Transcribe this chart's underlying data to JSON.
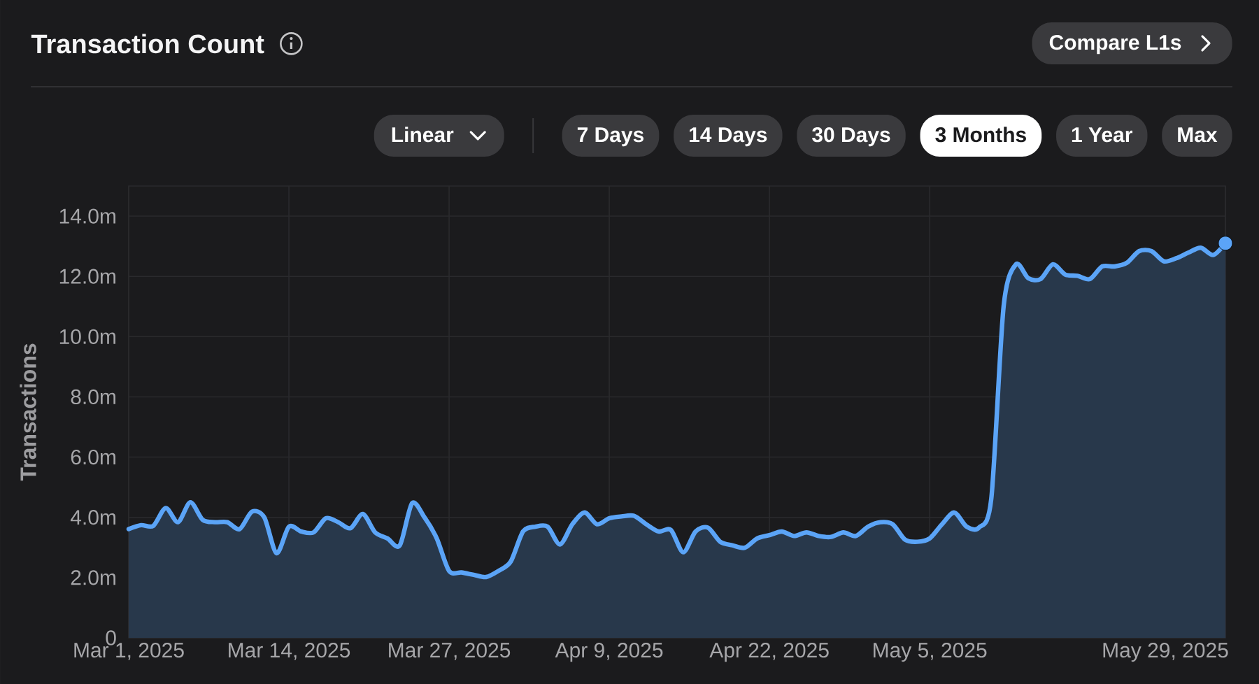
{
  "chart_data": {
    "type": "area",
    "title": "Transaction Count",
    "ylabel": "Transactions",
    "annotations": [
      "Compare L1s",
      "Linear",
      "7 Days",
      "14 Days",
      "30 Days",
      "3 Months",
      "1 Year",
      "Max"
    ],
    "xlim": [
      "2025-03-01",
      "2025-05-29"
    ],
    "xticks": [
      {
        "value": "2025-03-01",
        "label": "Mar 1, 2025"
      },
      {
        "value": "2025-03-14",
        "label": "Mar 14, 2025"
      },
      {
        "value": "2025-03-27",
        "label": "Mar 27, 2025"
      },
      {
        "value": "2025-04-09",
        "label": "Apr 9, 2025"
      },
      {
        "value": "2025-04-22",
        "label": "Apr 22, 2025"
      },
      {
        "value": "2025-05-05",
        "label": "May 5, 2025"
      },
      {
        "value": "2025-05-29",
        "label": "May 29, 2025"
      }
    ],
    "ylim": [
      0,
      15
    ],
    "yticks": [
      0,
      {
        "value": 2,
        "label": "2.0m"
      },
      {
        "value": 4,
        "label": "4.0m"
      },
      {
        "value": 6,
        "label": "6.0m"
      },
      {
        "value": 8,
        "label": "8.0m"
      },
      {
        "value": 10,
        "label": "10.0m"
      },
      {
        "value": 12,
        "label": "12.0m"
      },
      {
        "value": 14,
        "label": "14.0m"
      }
    ],
    "grid": true,
    "x": [
      "2025-03-01",
      "2025-03-02",
      "2025-03-03",
      "2025-03-04",
      "2025-03-05",
      "2025-03-06",
      "2025-03-07",
      "2025-03-08",
      "2025-03-09",
      "2025-03-10",
      "2025-03-11",
      "2025-03-12",
      "2025-03-13",
      "2025-03-14",
      "2025-03-15",
      "2025-03-16",
      "2025-03-17",
      "2025-03-18",
      "2025-03-19",
      "2025-03-20",
      "2025-03-21",
      "2025-03-22",
      "2025-03-23",
      "2025-03-24",
      "2025-03-25",
      "2025-03-26",
      "2025-03-27",
      "2025-03-28",
      "2025-03-29",
      "2025-03-30",
      "2025-03-31",
      "2025-04-01",
      "2025-04-02",
      "2025-04-03",
      "2025-04-04",
      "2025-04-05",
      "2025-04-06",
      "2025-04-07",
      "2025-04-08",
      "2025-04-09",
      "2025-04-10",
      "2025-04-11",
      "2025-04-12",
      "2025-04-13",
      "2025-04-14",
      "2025-04-15",
      "2025-04-16",
      "2025-04-17",
      "2025-04-18",
      "2025-04-19",
      "2025-04-20",
      "2025-04-21",
      "2025-04-22",
      "2025-04-23",
      "2025-04-24",
      "2025-04-25",
      "2025-04-26",
      "2025-04-27",
      "2025-04-28",
      "2025-04-29",
      "2025-04-30",
      "2025-05-01",
      "2025-05-02",
      "2025-05-03",
      "2025-05-04",
      "2025-05-05",
      "2025-05-06",
      "2025-05-07",
      "2025-05-08",
      "2025-05-09",
      "2025-05-10",
      "2025-05-11",
      "2025-05-12",
      "2025-05-13",
      "2025-05-14",
      "2025-05-15",
      "2025-05-16",
      "2025-05-17",
      "2025-05-18",
      "2025-05-19",
      "2025-05-20",
      "2025-05-21",
      "2025-05-22",
      "2025-05-23",
      "2025-05-24",
      "2025-05-25",
      "2025-05-26",
      "2025-05-27",
      "2025-05-28",
      "2025-05-29"
    ],
    "series": [
      {
        "color": "#5ba4f7",
        "values": [
          3.61,
          3.74,
          3.72,
          4.31,
          3.84,
          4.5,
          3.92,
          3.84,
          3.84,
          3.61,
          4.19,
          4.0,
          2.81,
          3.69,
          3.53,
          3.5,
          3.97,
          3.84,
          3.64,
          4.11,
          3.5,
          3.3,
          3.07,
          4.47,
          4.0,
          3.3,
          2.22,
          2.17,
          2.09,
          2.02,
          2.22,
          2.53,
          3.53,
          3.69,
          3.69,
          3.1,
          3.77,
          4.16,
          3.77,
          3.97,
          4.03,
          4.05,
          3.77,
          3.53,
          3.58,
          2.84,
          3.53,
          3.66,
          3.19,
          3.07,
          2.99,
          3.3,
          3.41,
          3.53,
          3.38,
          3.5,
          3.38,
          3.35,
          3.5,
          3.38,
          3.69,
          3.84,
          3.77,
          3.26,
          3.19,
          3.3,
          3.77,
          4.16,
          3.69,
          3.66,
          4.62,
          11.0,
          12.4,
          11.94,
          11.91,
          12.4,
          12.06,
          12.02,
          11.91,
          12.33,
          12.33,
          12.45,
          12.84,
          12.84,
          12.5,
          12.6,
          12.79,
          12.95,
          12.71,
          13.1
        ]
      },
      {
        "type": "scatter",
        "color": "#5ba4f7",
        "marker": "circle",
        "x": [
          "2025-05-29"
        ],
        "values": [
          13.1
        ]
      }
    ]
  }
}
